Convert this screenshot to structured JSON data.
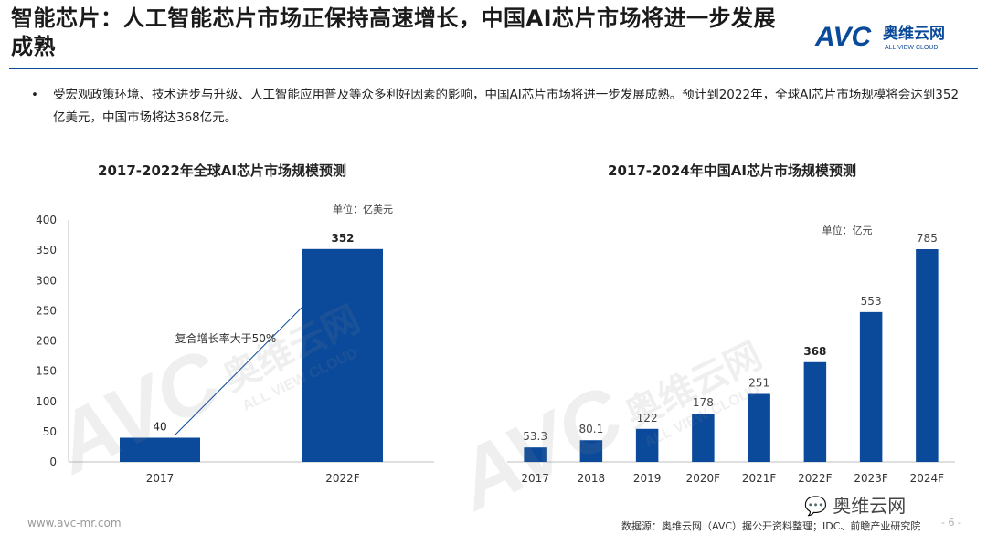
{
  "slide": {
    "title": "智能芯片：人工智能芯片市场正保持高速增长，中国AI芯片市场将进一步发展成熟",
    "bullet_marker": "•",
    "bullet_text": "受宏观政策环境、技术进步与升级、人工智能应用普及等众多利好因素的影响，中国AI芯片市场将进一步发展成熟。预计到2022年，全球AI芯片市场规模将会达到352亿美元，中国市场将达368亿元。",
    "brand_logo_text": "AVC",
    "brand_cn": "奥维云网",
    "brand_en": "ALL VIEW CLOUD",
    "watermark_logo": "AVC",
    "watermark_cn": "奥维云网",
    "watermark_en": "ALL VIEW CLOUD",
    "site_url": "www.avc-mr.com",
    "source_note": "数据源：奥维云网（AVC）据公开资料整理；IDC、前瞻产业研究院",
    "page_number": "- 6 -",
    "wechat_badge": "奥维云网",
    "colors": {
      "bar": "#0b4a9a",
      "accent": "#0b4a9a",
      "axis": "#bfbfbf",
      "text": "#222222"
    }
  },
  "chart_data": [
    {
      "type": "bar",
      "title": "2017-2022年全球AI芯片市场规模预测",
      "unit_label": "单位：亿美元",
      "categories": [
        "2017",
        "2022F"
      ],
      "values": [
        40,
        352
      ],
      "value_labels": [
        "40",
        "352"
      ],
      "ylim": [
        0,
        400
      ],
      "yticks": [
        0,
        50,
        100,
        150,
        200,
        250,
        300,
        350,
        400
      ],
      "annotation": "复合增长率大于50%",
      "grid": false,
      "color": "#0b4a9a"
    },
    {
      "type": "bar",
      "title": "2017-2024年中国AI芯片市场规模预测",
      "unit_label": "单位：亿元",
      "categories": [
        "2017",
        "2018",
        "2019",
        "2020F",
        "2021F",
        "2022F",
        "2023F",
        "2024F"
      ],
      "values": [
        53.3,
        80.1,
        122,
        178,
        251,
        368,
        553,
        785
      ],
      "value_labels": [
        "53.3",
        "80.1",
        "122",
        "178",
        "251",
        "368",
        "553",
        "785"
      ],
      "bold_labels": [
        "368"
      ],
      "ylim": [
        0,
        785
      ],
      "grid": false,
      "color": "#0b4a9a"
    }
  ]
}
